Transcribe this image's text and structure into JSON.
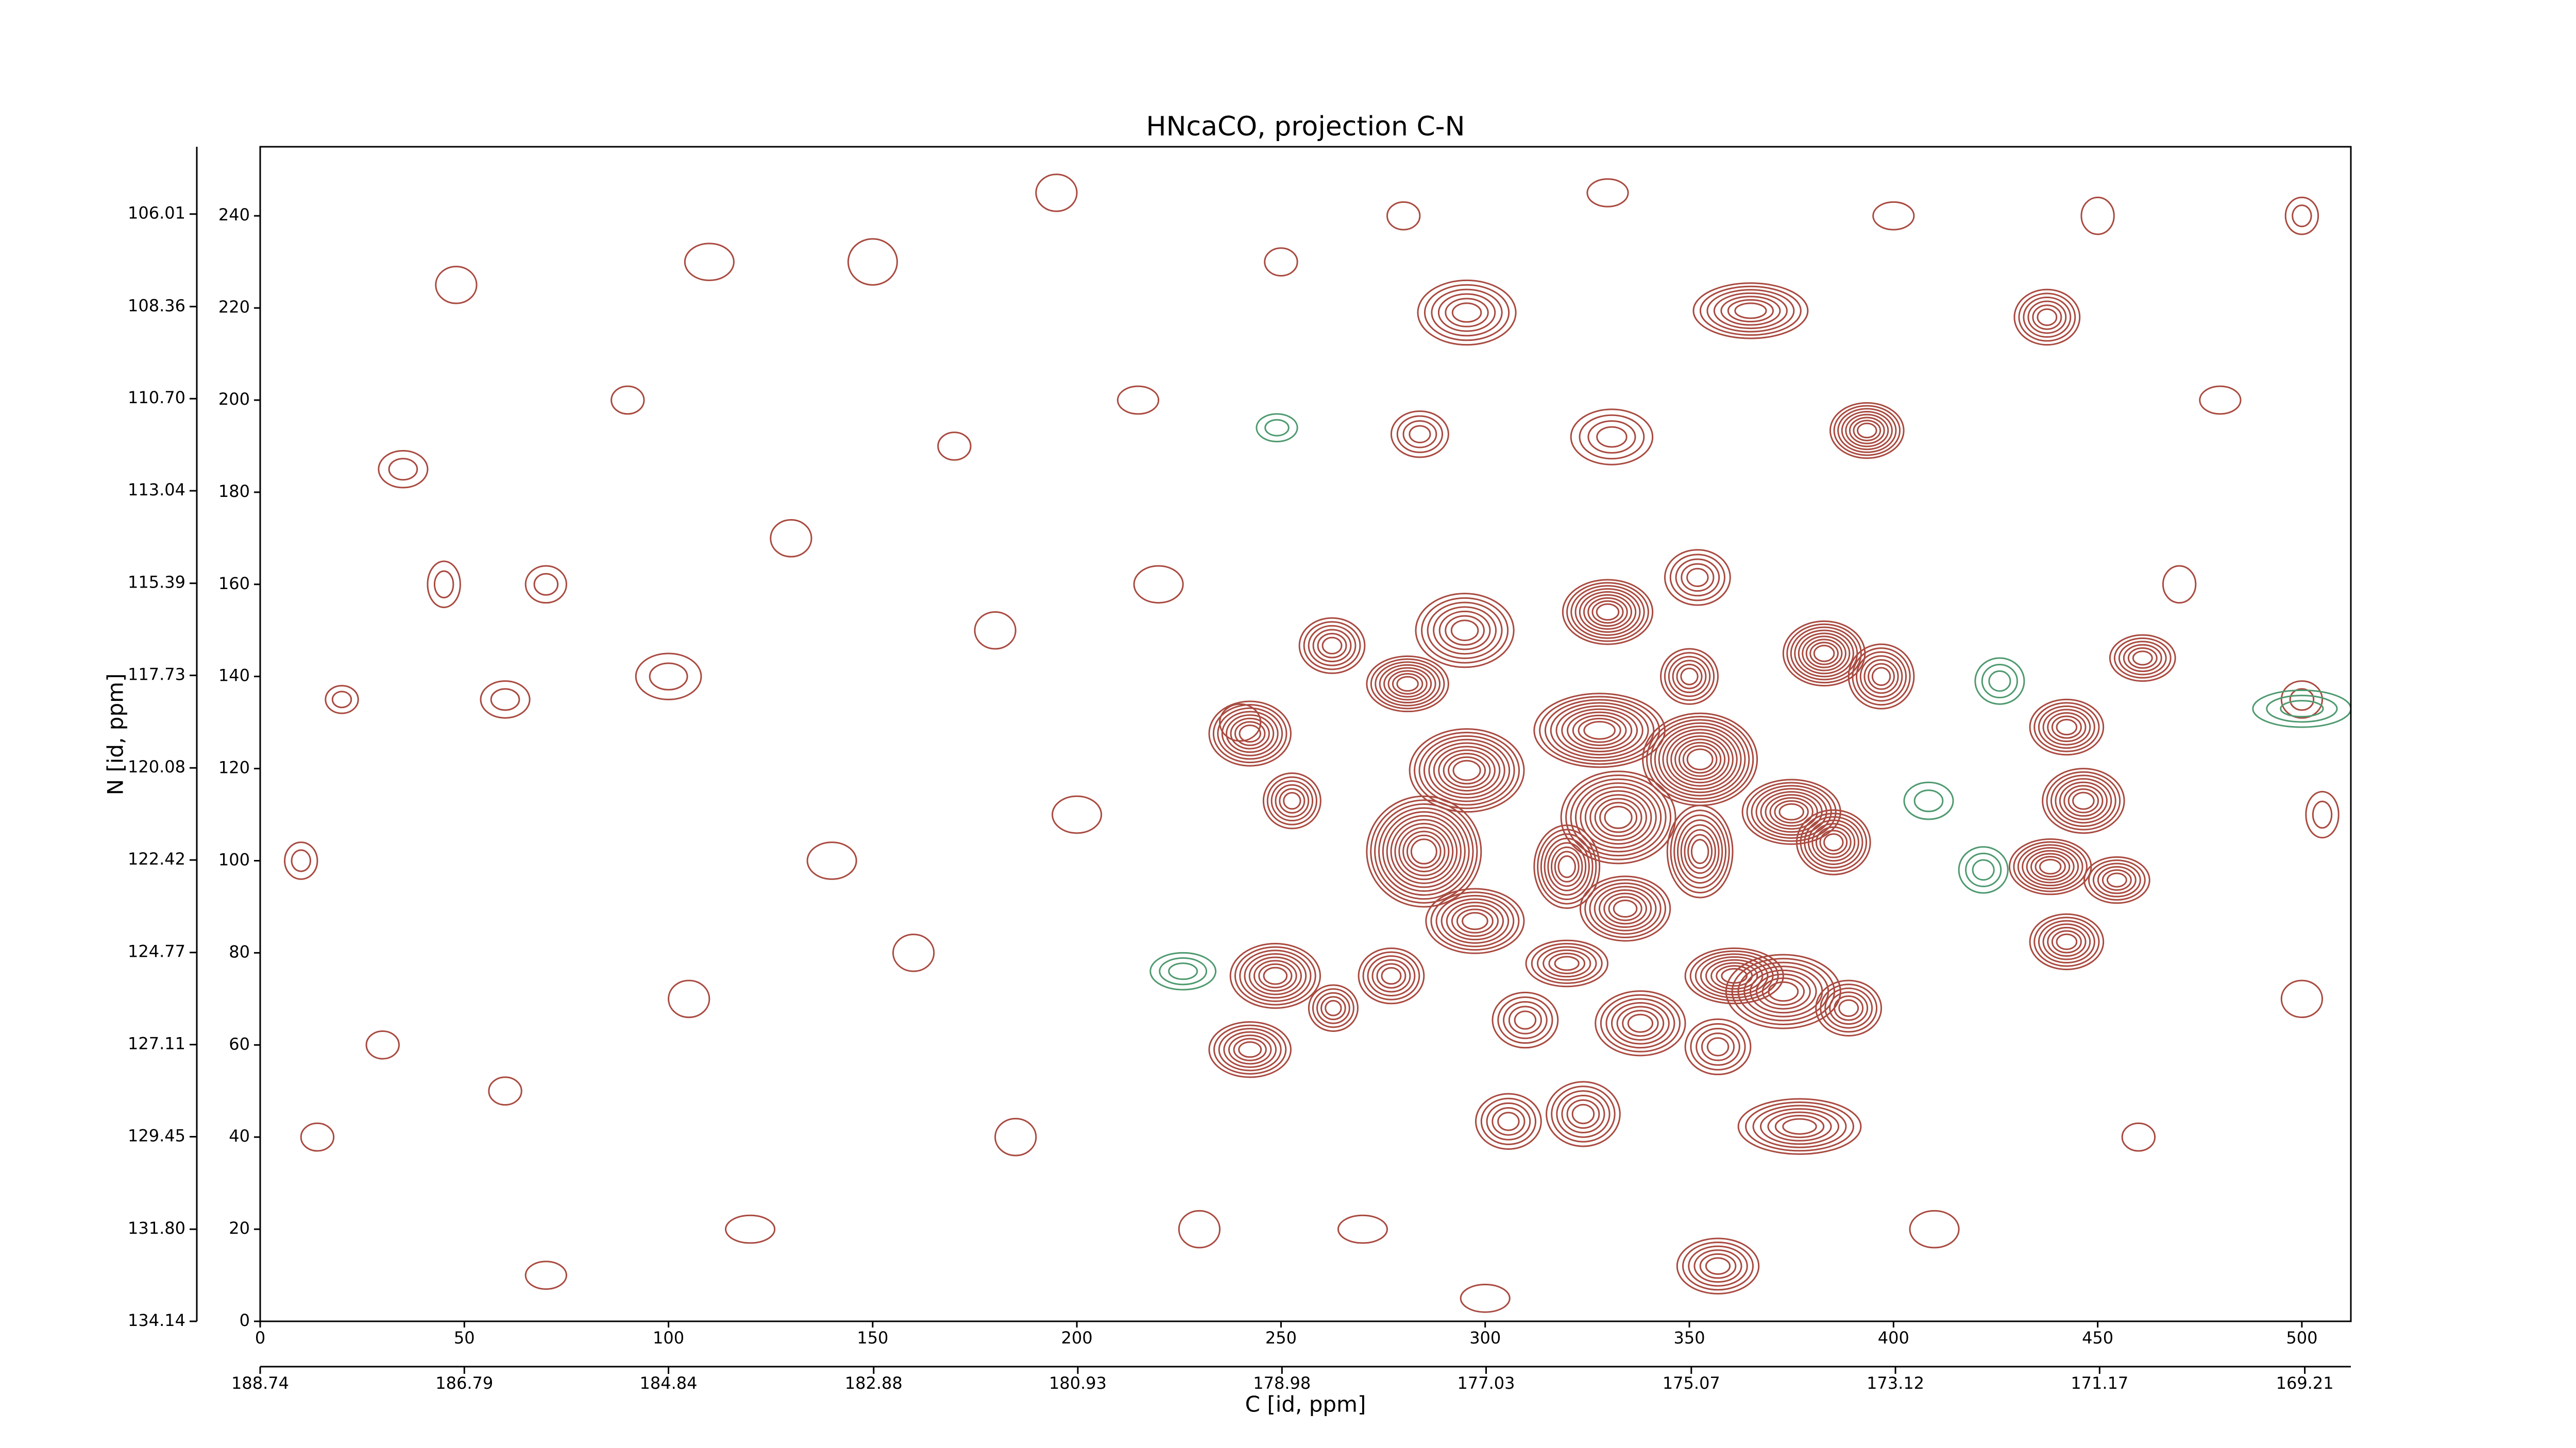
{
  "chart_data": {
    "type": "contour",
    "title": "HNcaCO, projection C-N",
    "xlabel": "C [id, ppm]",
    "ylabel": "N [id, ppm]",
    "xlim": [
      0,
      512
    ],
    "xticks": [
      0,
      50,
      100,
      150,
      200,
      250,
      300,
      350,
      400,
      450,
      500
    ],
    "ylim": [
      0,
      255
    ],
    "yticks": [
      0,
      20,
      40,
      60,
      80,
      100,
      120,
      140,
      160,
      180,
      200,
      220,
      240
    ],
    "x2lim": [
      188.74,
      168.77
    ],
    "x2ticks": [
      188.74,
      186.79,
      184.84,
      182.88,
      180.93,
      178.98,
      177.03,
      175.07,
      173.12,
      171.17,
      169.21
    ],
    "y2lim": [
      134.14,
      104.3
    ],
    "y2ticks": [
      134.14,
      {
        "value": 131.8,
        "label": "131.80"
      },
      129.45,
      127.11,
      124.77,
      122.42,
      120.08,
      117.73,
      115.39,
      113.04,
      {
        "value": 110.7,
        "label": "110.70"
      },
      108.36,
      106.01
    ],
    "contours": [
      {
        "color": "#a94a40",
        "peaks": [
          [
            295.5,
            219,
            12,
            7,
            6
          ],
          [
            365,
            219.4,
            14,
            6,
            7
          ],
          [
            393.5,
            193.4,
            9,
            6,
            8
          ],
          [
            437.6,
            218,
            8,
            6,
            6
          ],
          [
            284,
            192.6,
            7,
            5,
            4
          ],
          [
            331,
            192,
            10,
            6,
            4
          ],
          [
            330,
            154,
            11,
            7,
            9
          ],
          [
            352,
            161.5,
            8,
            6,
            5
          ],
          [
            295,
            150,
            12,
            8,
            7
          ],
          [
            262.5,
            146.7,
            8,
            6,
            6
          ],
          [
            281,
            138.4,
            10,
            6,
            8
          ],
          [
            383,
            145,
            10,
            7,
            9
          ],
          [
            397,
            140,
            8,
            7,
            7
          ],
          [
            350,
            140,
            7,
            6,
            6
          ],
          [
            461,
            144,
            8,
            5,
            6
          ],
          [
            242.4,
            127.6,
            10,
            7,
            8
          ],
          [
            442.4,
            129,
            9,
            6,
            7
          ],
          [
            328,
            128.3,
            16,
            8,
            10
          ],
          [
            352.6,
            122,
            14,
            10,
            12
          ],
          [
            295.5,
            119.6,
            14,
            9,
            10
          ],
          [
            332.6,
            109.4,
            14,
            10,
            10
          ],
          [
            375,
            110.6,
            12,
            7,
            9
          ],
          [
            446.5,
            113,
            10,
            7,
            8
          ],
          [
            285,
            102,
            14,
            12,
            12
          ],
          [
            352.6,
            102,
            8,
            10,
            8
          ],
          [
            320,
            98.7,
            8,
            9,
            8
          ],
          [
            385.3,
            104,
            9,
            7,
            8
          ],
          [
            438.4,
            98.7,
            10,
            6,
            8
          ],
          [
            454.7,
            95.8,
            8,
            5,
            6
          ],
          [
            252.7,
            113,
            7,
            6,
            6
          ],
          [
            297.5,
            86.9,
            12,
            7,
            8
          ],
          [
            334.3,
            89.6,
            11,
            7,
            8
          ],
          [
            320,
            77.7,
            10,
            5,
            6
          ],
          [
            361,
            75,
            12,
            6,
            8
          ],
          [
            373,
            71.6,
            14,
            8,
            8
          ],
          [
            389,
            68,
            8,
            6,
            6
          ],
          [
            248.6,
            75,
            11,
            7,
            8
          ],
          [
            277,
            75,
            8,
            6,
            6
          ],
          [
            262.8,
            68,
            6,
            5,
            5
          ],
          [
            242.4,
            59,
            10,
            6,
            7
          ],
          [
            309.8,
            65.4,
            8,
            6,
            5
          ],
          [
            338,
            64.7,
            11,
            7,
            7
          ],
          [
            357,
            59.6,
            8,
            6,
            5
          ],
          [
            442.4,
            82.4,
            9,
            6,
            7
          ],
          [
            305.7,
            43.4,
            8,
            6,
            5
          ],
          [
            324,
            45,
            9,
            7,
            6
          ],
          [
            377,
            42.3,
            15,
            6,
            7
          ],
          [
            357,
            12,
            10,
            6,
            6
          ],
          [
            20,
            135,
            4,
            3,
            2
          ],
          [
            48,
            225,
            5,
            4,
            1
          ],
          [
            14,
            40,
            4,
            3,
            1
          ],
          [
            70,
            160,
            5,
            4,
            2
          ],
          [
            110,
            230,
            6,
            4,
            1
          ],
          [
            90,
            200,
            4,
            3,
            1
          ],
          [
            35,
            185,
            6,
            4,
            2
          ],
          [
            130,
            170,
            5,
            4,
            1
          ],
          [
            60,
            135,
            6,
            4,
            2
          ],
          [
            45,
            160,
            4,
            5,
            2
          ],
          [
            100,
            140,
            8,
            5,
            2
          ],
          [
            150,
            230,
            6,
            5,
            1
          ],
          [
            160,
            80,
            5,
            4,
            1
          ],
          [
            180,
            150,
            5,
            4,
            1
          ],
          [
            200,
            110,
            6,
            4,
            1
          ],
          [
            215,
            200,
            5,
            3,
            1
          ],
          [
            185,
            40,
            5,
            4,
            1
          ],
          [
            120,
            20,
            6,
            3,
            1
          ],
          [
            70,
            10,
            5,
            3,
            1
          ],
          [
            230,
            20,
            5,
            4,
            1
          ],
          [
            30,
            60,
            4,
            3,
            1
          ],
          [
            60,
            50,
            4,
            3,
            1
          ],
          [
            105,
            70,
            5,
            4,
            1
          ],
          [
            140,
            100,
            6,
            4,
            1
          ],
          [
            170,
            190,
            4,
            3,
            1
          ],
          [
            195,
            245,
            5,
            4,
            1
          ],
          [
            250,
            230,
            4,
            3,
            1
          ],
          [
            280,
            240,
            4,
            3,
            1
          ],
          [
            330,
            245,
            5,
            3,
            1
          ],
          [
            400,
            240,
            5,
            3,
            1
          ],
          [
            450,
            240,
            4,
            4,
            1
          ],
          [
            500,
            240,
            4,
            4,
            2
          ],
          [
            480,
            200,
            5,
            3,
            1
          ],
          [
            470,
            160,
            4,
            4,
            1
          ],
          [
            500,
            70,
            5,
            4,
            1
          ],
          [
            460,
            40,
            4,
            3,
            1
          ],
          [
            410,
            20,
            6,
            4,
            1
          ],
          [
            270,
            20,
            6,
            3,
            1
          ],
          [
            300,
            5,
            6,
            3,
            1
          ],
          [
            220,
            160,
            6,
            4,
            1
          ],
          [
            240,
            130,
            5,
            4,
            1
          ],
          [
            10,
            100,
            4,
            4,
            2
          ],
          [
            505,
            110,
            4,
            5,
            2
          ],
          [
            500,
            135,
            5,
            4,
            2
          ]
        ]
      },
      {
        "color": "#4f9a70",
        "peaks": [
          [
            426,
            139,
            6,
            5,
            3
          ],
          [
            226,
            76,
            8,
            4,
            3
          ],
          [
            408.6,
            113,
            6,
            4,
            2
          ],
          [
            422,
            98,
            6,
            5,
            3
          ],
          [
            500,
            133,
            12,
            4,
            3
          ],
          [
            249,
            194,
            5,
            3,
            2
          ]
        ]
      }
    ]
  }
}
